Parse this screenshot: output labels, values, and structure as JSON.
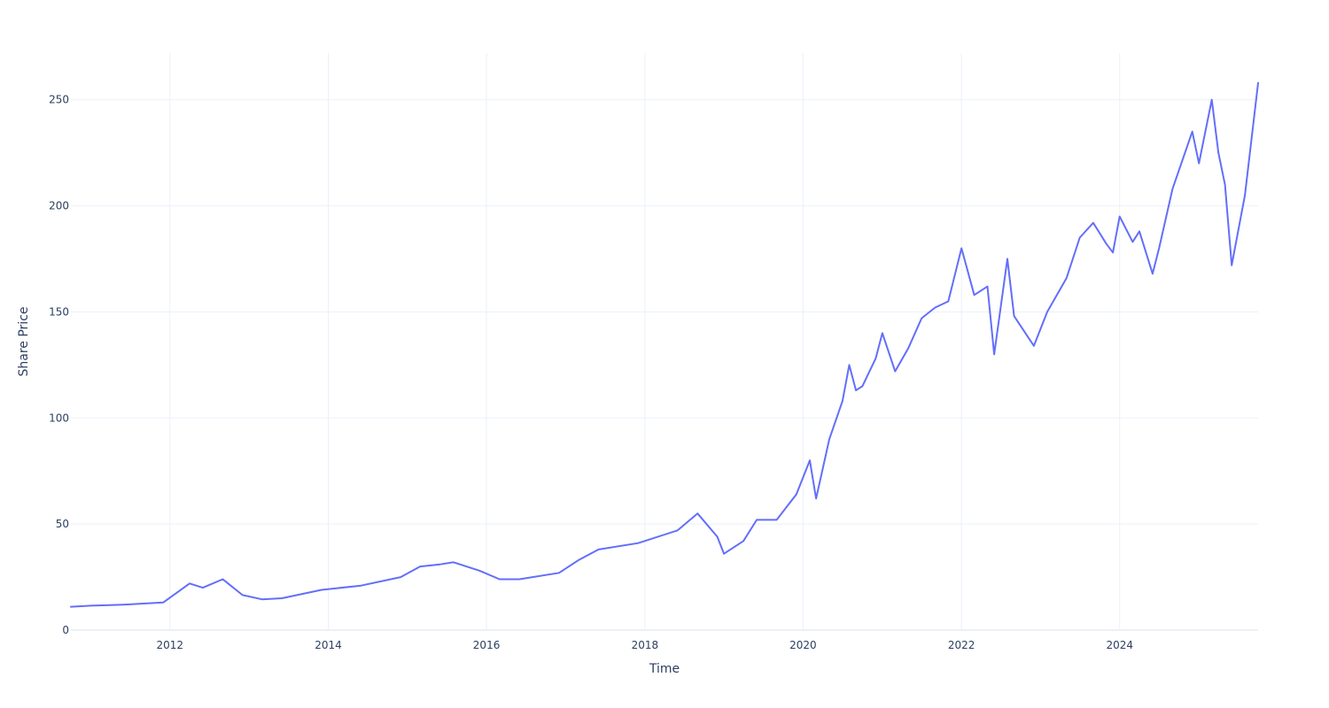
{
  "chart_data": {
    "type": "line",
    "xlabel": "Time",
    "ylabel": "Share Price",
    "xlim": [
      "2010-10-01",
      "2025-10-01"
    ],
    "ylim": [
      0,
      272
    ],
    "x_ticks": [
      {
        "value": "2012-01-01",
        "label": "2012"
      },
      {
        "value": "2014-01-01",
        "label": "2014"
      },
      {
        "value": "2016-01-01",
        "label": "2016"
      },
      {
        "value": "2018-01-01",
        "label": "2018"
      },
      {
        "value": "2020-01-01",
        "label": "2020"
      },
      {
        "value": "2022-01-01",
        "label": "2022"
      },
      {
        "value": "2024-01-01",
        "label": "2024"
      }
    ],
    "y_ticks": [
      {
        "value": 0,
        "label": "0"
      },
      {
        "value": 50,
        "label": "50"
      },
      {
        "value": 100,
        "label": "100"
      },
      {
        "value": 150,
        "label": "150"
      },
      {
        "value": 200,
        "label": "200"
      },
      {
        "value": 250,
        "label": "250"
      }
    ],
    "grid": true,
    "legend": "none",
    "series": [
      {
        "color": "#636efa",
        "x": [
          "2010-10-01",
          "2011-01-01",
          "2011-06-01",
          "2011-12-01",
          "2012-04-01",
          "2012-06-01",
          "2012-09-01",
          "2012-12-01",
          "2013-03-01",
          "2013-06-01",
          "2013-12-01",
          "2014-06-01",
          "2014-12-01",
          "2015-03-01",
          "2015-06-01",
          "2015-08-01",
          "2015-12-01",
          "2016-03-01",
          "2016-06-01",
          "2016-12-01",
          "2017-03-01",
          "2017-06-01",
          "2017-12-01",
          "2018-06-01",
          "2018-09-01",
          "2018-12-01",
          "2019-01-01",
          "2019-04-01",
          "2019-06-01",
          "2019-09-01",
          "2019-12-01",
          "2020-02-01",
          "2020-03-01",
          "2020-05-01",
          "2020-07-01",
          "2020-08-01",
          "2020-09-01",
          "2020-10-01",
          "2020-12-01",
          "2021-01-01",
          "2021-03-01",
          "2021-05-01",
          "2021-07-01",
          "2021-09-01",
          "2021-11-01",
          "2022-01-01",
          "2022-03-01",
          "2022-05-01",
          "2022-06-01",
          "2022-08-01",
          "2022-09-01",
          "2022-12-01",
          "2023-02-01",
          "2023-05-01",
          "2023-07-01",
          "2023-09-01",
          "2023-11-01",
          "2023-12-01",
          "2024-01-01",
          "2024-03-01",
          "2024-04-01",
          "2024-06-01",
          "2024-07-01",
          "2024-09-01",
          "2024-12-01",
          "2025-01-01",
          "2025-03-01",
          "2025-04-01",
          "2025-05-01",
          "2025-06-01",
          "2025-08-01",
          "2025-09-01",
          "2025-10-01"
        ],
        "y": [
          11,
          11.5,
          12,
          13,
          22,
          20,
          24,
          16.5,
          14.5,
          15,
          19,
          21,
          25,
          30,
          31,
          32,
          28,
          24,
          24,
          27,
          33,
          38,
          41,
          47,
          55,
          44,
          36,
          42,
          52,
          52,
          64,
          80,
          62,
          90,
          108,
          125,
          113,
          115,
          128,
          140,
          122,
          133,
          147,
          152,
          155,
          180,
          158,
          162,
          130,
          175,
          148,
          134,
          150,
          166,
          185,
          192,
          182,
          178,
          195,
          183,
          188,
          168,
          180,
          208,
          235,
          220,
          250,
          225,
          210,
          172,
          205,
          232,
          258
        ]
      }
    ]
  }
}
